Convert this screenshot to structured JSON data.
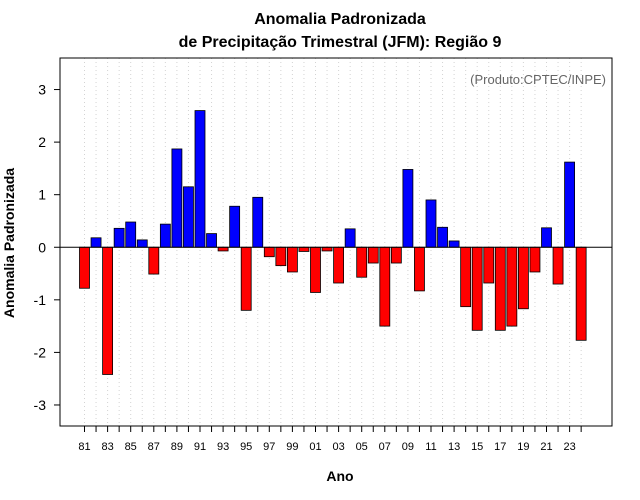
{
  "chart_data": {
    "type": "bar",
    "title_line1": "Anomalia Padronizada",
    "title_line2": "de Precipitação Trimestral (JFM): Região 9",
    "credit": "(Produto:CPTEC/INPE)",
    "xlabel": "Ano",
    "ylabel": "Anomalia Padronizada",
    "ylim": [
      -3.4,
      3.6
    ],
    "yticks": [
      -3,
      -2,
      -1,
      0,
      1,
      2,
      3
    ],
    "grid": "vertical dotted",
    "colors": {
      "positive": "#0000ff",
      "negative": "#ff0000",
      "grid": "#d3d3d3"
    },
    "categories": [
      "1981",
      "1982",
      "1983",
      "1984",
      "1985",
      "1986",
      "1987",
      "1988",
      "1989",
      "1990",
      "1991",
      "1992",
      "1993",
      "1994",
      "1995",
      "1996",
      "1997",
      "1998",
      "1999",
      "2000",
      "2001",
      "2002",
      "2003",
      "2004",
      "2005",
      "2006",
      "2007",
      "2008",
      "2009",
      "2010",
      "2011",
      "2012",
      "2013",
      "2014",
      "2015",
      "2016",
      "2017",
      "2018",
      "2019",
      "2020",
      "2021",
      "2022",
      "2023",
      "2024"
    ],
    "xtick_labels": [
      "81",
      "",
      "83",
      "",
      "85",
      "",
      "87",
      "",
      "89",
      "",
      "91",
      "",
      "93",
      "",
      "95",
      "",
      "97",
      "",
      "99",
      "",
      "01",
      "",
      "03",
      "",
      "05",
      "",
      "07",
      "",
      "09",
      "",
      "11",
      "",
      "13",
      "",
      "15",
      "",
      "17",
      "",
      "19",
      "",
      "21",
      "",
      "23",
      ""
    ],
    "values": [
      -0.78,
      0.18,
      -2.42,
      0.36,
      0.48,
      0.14,
      -0.51,
      0.44,
      1.87,
      1.15,
      2.6,
      0.26,
      -0.07,
      0.78,
      -1.2,
      0.95,
      -0.18,
      -0.35,
      -0.47,
      -0.08,
      -0.86,
      -0.07,
      -0.68,
      0.35,
      -0.57,
      -0.3,
      -1.5,
      -0.3,
      1.48,
      -0.83,
      0.9,
      0.38,
      0.12,
      -1.13,
      -1.58,
      -0.68,
      -1.58,
      -1.5,
      -1.17,
      -0.47,
      0.37,
      -0.7,
      1.62,
      -1.77
    ]
  }
}
